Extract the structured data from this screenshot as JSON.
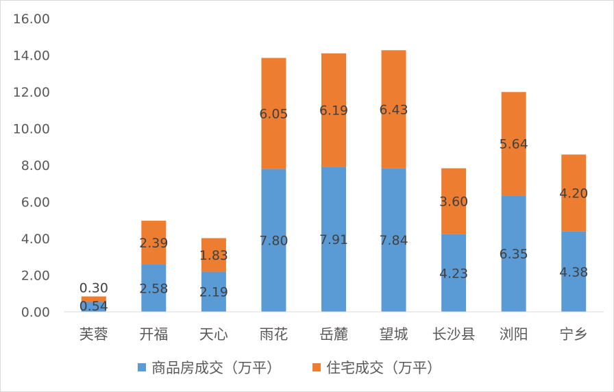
{
  "chart_data": {
    "type": "bar",
    "stacked": true,
    "categories": [
      "芙蓉",
      "开福",
      "天心",
      "雨花",
      "岳麓",
      "望城",
      "长沙县",
      "浏阳",
      "宁乡"
    ],
    "series": [
      {
        "name": "商品房成交（万平）",
        "color": "#5b9bd5",
        "values": [
          0.54,
          2.58,
          2.19,
          7.8,
          7.91,
          7.84,
          4.23,
          6.35,
          4.38
        ]
      },
      {
        "name": "住宅成交（万平）",
        "color": "#ed7d31",
        "values": [
          0.3,
          2.39,
          1.83,
          6.05,
          6.19,
          6.43,
          3.6,
          5.64,
          4.2
        ]
      }
    ],
    "value_labels": [
      [
        "0.54",
        "2.58",
        "2.19",
        "7.80",
        "7.91",
        "7.84",
        "4.23",
        "6.35",
        "4.38"
      ],
      [
        "0.30",
        "2.39",
        "1.83",
        "6.05",
        "6.19",
        "6.43",
        "3.60",
        "5.64",
        "4.20"
      ]
    ],
    "ylim": [
      0,
      16
    ],
    "yticks": [
      "0.00",
      "2.00",
      "4.00",
      "6.00",
      "8.00",
      "10.00",
      "12.00",
      "14.00",
      "16.00"
    ],
    "grid": false,
    "legend_position": "bottom"
  }
}
